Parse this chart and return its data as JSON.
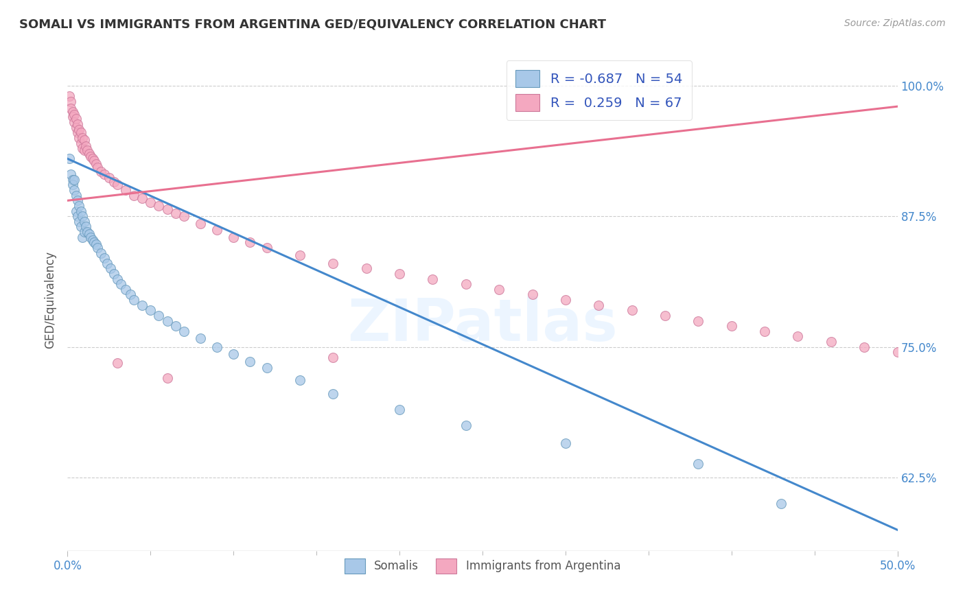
{
  "title": "SOMALI VS IMMIGRANTS FROM ARGENTINA GED/EQUIVALENCY CORRELATION CHART",
  "source": "Source: ZipAtlas.com",
  "ylabel": "GED/Equivalency",
  "ytick_labels": [
    "100.0%",
    "87.5%",
    "75.0%",
    "62.5%"
  ],
  "ytick_values": [
    1.0,
    0.875,
    0.75,
    0.625
  ],
  "xlim": [
    0.0,
    0.5
  ],
  "ylim": [
    0.555,
    1.035
  ],
  "legend_r_somali": "-0.687",
  "legend_n_somali": "54",
  "legend_r_argentina": " 0.259",
  "legend_n_argentina": "67",
  "somali_color": "#a8c8e8",
  "argentina_color": "#f4a8c0",
  "somali_line_color": "#4488cc",
  "argentina_line_color": "#e87090",
  "watermark": "ZIPatlas",
  "somali_scatter_x": [
    0.001,
    0.002,
    0.003,
    0.003,
    0.004,
    0.004,
    0.005,
    0.005,
    0.006,
    0.006,
    0.007,
    0.007,
    0.008,
    0.008,
    0.009,
    0.009,
    0.01,
    0.01,
    0.011,
    0.012,
    0.013,
    0.014,
    0.015,
    0.016,
    0.017,
    0.018,
    0.02,
    0.022,
    0.024,
    0.026,
    0.028,
    0.03,
    0.032,
    0.035,
    0.038,
    0.04,
    0.045,
    0.05,
    0.055,
    0.06,
    0.065,
    0.07,
    0.08,
    0.09,
    0.1,
    0.11,
    0.12,
    0.14,
    0.16,
    0.2,
    0.24,
    0.3,
    0.38,
    0.43
  ],
  "somali_scatter_y": [
    0.93,
    0.915,
    0.91,
    0.905,
    0.91,
    0.9,
    0.895,
    0.88,
    0.89,
    0.875,
    0.885,
    0.87,
    0.88,
    0.865,
    0.875,
    0.855,
    0.87,
    0.86,
    0.865,
    0.86,
    0.858,
    0.855,
    0.852,
    0.85,
    0.848,
    0.845,
    0.84,
    0.835,
    0.83,
    0.825,
    0.82,
    0.815,
    0.81,
    0.805,
    0.8,
    0.795,
    0.79,
    0.785,
    0.78,
    0.775,
    0.77,
    0.765,
    0.758,
    0.75,
    0.743,
    0.736,
    0.73,
    0.718,
    0.705,
    0.69,
    0.675,
    0.658,
    0.638,
    0.6
  ],
  "argentina_scatter_x": [
    0.001,
    0.002,
    0.002,
    0.003,
    0.003,
    0.004,
    0.004,
    0.005,
    0.005,
    0.006,
    0.006,
    0.007,
    0.007,
    0.008,
    0.008,
    0.009,
    0.009,
    0.01,
    0.01,
    0.011,
    0.012,
    0.013,
    0.014,
    0.015,
    0.016,
    0.017,
    0.018,
    0.02,
    0.022,
    0.025,
    0.028,
    0.03,
    0.035,
    0.04,
    0.045,
    0.05,
    0.055,
    0.06,
    0.065,
    0.07,
    0.08,
    0.09,
    0.1,
    0.11,
    0.12,
    0.14,
    0.16,
    0.18,
    0.2,
    0.22,
    0.24,
    0.26,
    0.28,
    0.3,
    0.32,
    0.34,
    0.36,
    0.38,
    0.4,
    0.42,
    0.44,
    0.46,
    0.48,
    0.5,
    0.03,
    0.06,
    0.16
  ],
  "argentina_scatter_y": [
    0.99,
    0.985,
    0.978,
    0.975,
    0.97,
    0.972,
    0.965,
    0.968,
    0.96,
    0.963,
    0.955,
    0.958,
    0.95,
    0.955,
    0.945,
    0.95,
    0.94,
    0.948,
    0.938,
    0.942,
    0.938,
    0.935,
    0.932,
    0.93,
    0.928,
    0.925,
    0.922,
    0.918,
    0.915,
    0.912,
    0.908,
    0.905,
    0.9,
    0.895,
    0.892,
    0.888,
    0.885,
    0.882,
    0.878,
    0.875,
    0.868,
    0.862,
    0.855,
    0.85,
    0.845,
    0.838,
    0.83,
    0.825,
    0.82,
    0.815,
    0.81,
    0.805,
    0.8,
    0.795,
    0.79,
    0.785,
    0.78,
    0.775,
    0.77,
    0.765,
    0.76,
    0.755,
    0.75,
    0.745,
    0.735,
    0.72,
    0.74
  ],
  "somali_line_x": [
    0.0,
    0.5
  ],
  "somali_line_y": [
    0.93,
    0.575
  ],
  "argentina_line_x": [
    0.0,
    0.5
  ],
  "argentina_line_y": [
    0.89,
    0.98
  ]
}
